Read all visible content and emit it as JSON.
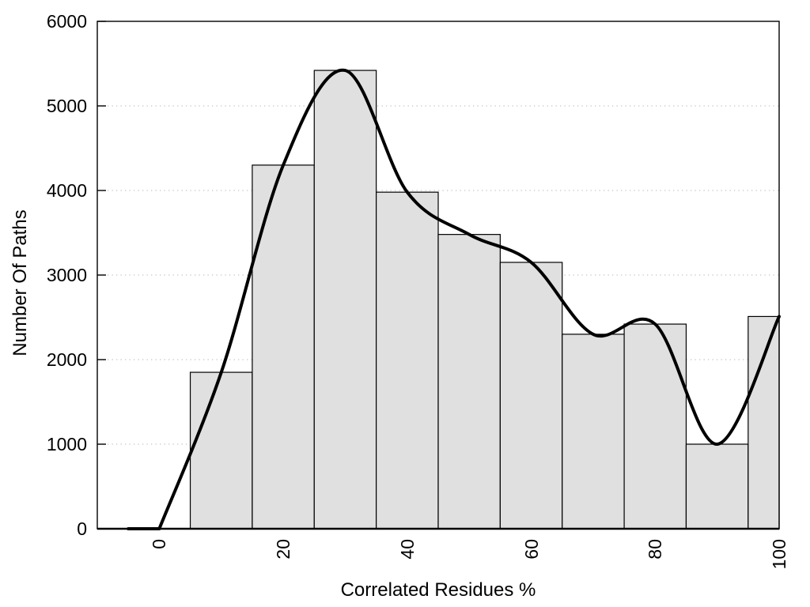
{
  "chart_data": {
    "type": "bar",
    "subtype": "histogram-with-smooth-spline-overlay",
    "title": "",
    "xlabel": "Correlated Residues %",
    "ylabel": "Number Of Paths",
    "xlim": [
      -10,
      100
    ],
    "ylim": [
      0,
      6000
    ],
    "x_ticks": [
      0,
      20,
      40,
      60,
      80,
      100
    ],
    "y_ticks": [
      0,
      1000,
      2000,
      3000,
      4000,
      5000,
      6000
    ],
    "grid": "horizontal dotted gridlines at each y tick, drawn beneath bars",
    "legend": "none",
    "bars": {
      "bin_width": 10,
      "centers": [
        10,
        20,
        30,
        40,
        50,
        60,
        70,
        80,
        90,
        100
      ],
      "values": [
        1850,
        4300,
        5420,
        3980,
        3480,
        3150,
        2300,
        2420,
        1000,
        2510
      ],
      "note": "last bin clipped at x=100",
      "fill_color": "#e0e0e0",
      "border_color": "#000000"
    },
    "curve": {
      "type": "smooth spline through bin values",
      "lead_in": [
        [
          -5,
          0
        ],
        [
          0,
          0
        ]
      ],
      "points": [
        [
          0,
          0
        ],
        [
          10,
          1850
        ],
        [
          20,
          4300
        ],
        [
          30,
          5420
        ],
        [
          40,
          3980
        ],
        [
          50,
          3480
        ],
        [
          60,
          3150
        ],
        [
          70,
          2300
        ],
        [
          80,
          2420
        ],
        [
          90,
          1000
        ],
        [
          100,
          2510
        ]
      ],
      "color": "#000000",
      "line_width": 4
    }
  },
  "colors": {
    "background": "#ffffff",
    "frame": "#000000",
    "grid": "#c4c4c4",
    "text": "#000000"
  }
}
